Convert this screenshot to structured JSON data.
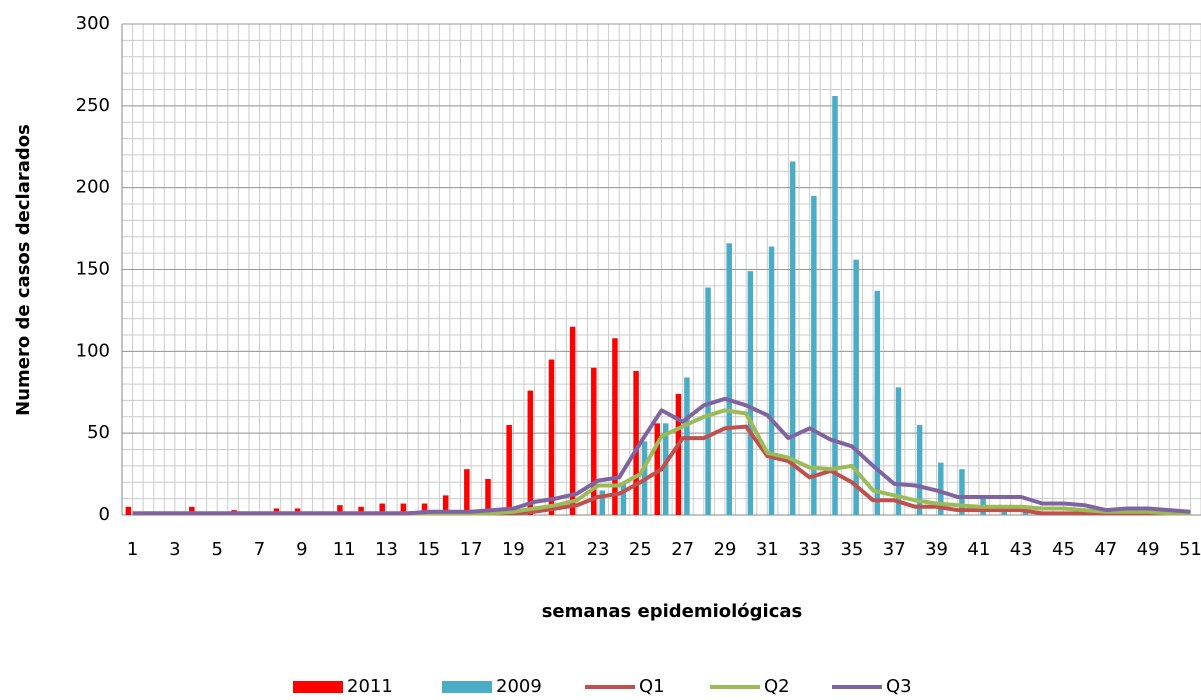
{
  "chart_data": {
    "type": "bar",
    "y_label": "Numero de casos declarados",
    "x_label": "semanas epidemiológicas",
    "categories": [
      "1",
      null,
      "3",
      null,
      "5",
      null,
      "7",
      null,
      "9",
      null,
      "11",
      null,
      "13",
      null,
      "15",
      null,
      "17",
      null,
      "19",
      null,
      "21",
      null,
      "23",
      null,
      "25",
      null,
      "27",
      null,
      "29",
      null,
      "31",
      null,
      "33",
      null,
      "35",
      null,
      "37",
      null,
      "39",
      null,
      "41",
      null,
      "43",
      null,
      "45",
      null,
      "47",
      null,
      "49",
      null,
      "51"
    ],
    "ylim": [
      0,
      300
    ],
    "yticks": [
      0,
      50,
      100,
      150,
      200,
      250,
      300
    ],
    "grid": true,
    "series": [
      {
        "name": "2011",
        "kind": "bar",
        "color": "#ff0000",
        "values": [
          5,
          0,
          0,
          5,
          0,
          3,
          0,
          4,
          4,
          0,
          6,
          5,
          7,
          7,
          7,
          12,
          28,
          22,
          55,
          76,
          95,
          115,
          90,
          108,
          88,
          56,
          74,
          null,
          null,
          null,
          null,
          null,
          null,
          null,
          null,
          null,
          null,
          null,
          null,
          null,
          null,
          null,
          null,
          null,
          null,
          null,
          null,
          null,
          null,
          null,
          null
        ]
      },
      {
        "name": "2009",
        "kind": "bar",
        "color": "#4bacc6",
        "values": [
          null,
          null,
          null,
          null,
          null,
          null,
          null,
          null,
          null,
          null,
          null,
          null,
          null,
          null,
          null,
          null,
          null,
          null,
          null,
          null,
          null,
          null,
          15,
          20,
          45,
          56,
          84,
          139,
          166,
          149,
          164,
          216,
          195,
          256,
          156,
          137,
          78,
          55,
          32,
          28,
          12,
          5,
          3,
          null,
          null,
          null,
          null,
          null,
          null,
          null,
          null
        ]
      },
      {
        "name": "Q1",
        "kind": "line",
        "color": "#c0504d",
        "values": [
          1,
          1,
          1,
          1,
          1,
          1,
          1,
          1,
          1,
          1,
          1,
          1,
          1,
          1,
          1,
          1,
          1,
          1,
          1,
          2,
          4,
          6,
          11,
          13,
          20,
          28,
          47,
          47,
          53,
          54,
          36,
          33,
          23,
          27,
          20,
          9,
          9,
          5,
          5,
          3,
          3,
          3,
          3,
          1,
          1,
          1,
          1,
          1,
          1,
          1,
          1
        ]
      },
      {
        "name": "Q2",
        "kind": "line",
        "color": "#9bbb59",
        "values": [
          1,
          1,
          1,
          1,
          1,
          1,
          1,
          1,
          1,
          1,
          1,
          1,
          1,
          1,
          1,
          1,
          1,
          1,
          2,
          4,
          6,
          9,
          18,
          18,
          25,
          48,
          54,
          60,
          64,
          62,
          38,
          35,
          29,
          28,
          30,
          15,
          12,
          9,
          7,
          6,
          5,
          5,
          5,
          4,
          4,
          3,
          2,
          2,
          2,
          1,
          1
        ]
      },
      {
        "name": "Q3",
        "kind": "line",
        "color": "#8064a2",
        "values": [
          1,
          1,
          1,
          1,
          1,
          1,
          1,
          1,
          1,
          1,
          1,
          1,
          1,
          1,
          2,
          2,
          2,
          3,
          4,
          8,
          10,
          13,
          21,
          23,
          44,
          64,
          57,
          67,
          71,
          67,
          61,
          47,
          53,
          46,
          42,
          30,
          19,
          18,
          15,
          11,
          11,
          11,
          11,
          7,
          7,
          6,
          3,
          4,
          4,
          3,
          2
        ]
      }
    ]
  }
}
